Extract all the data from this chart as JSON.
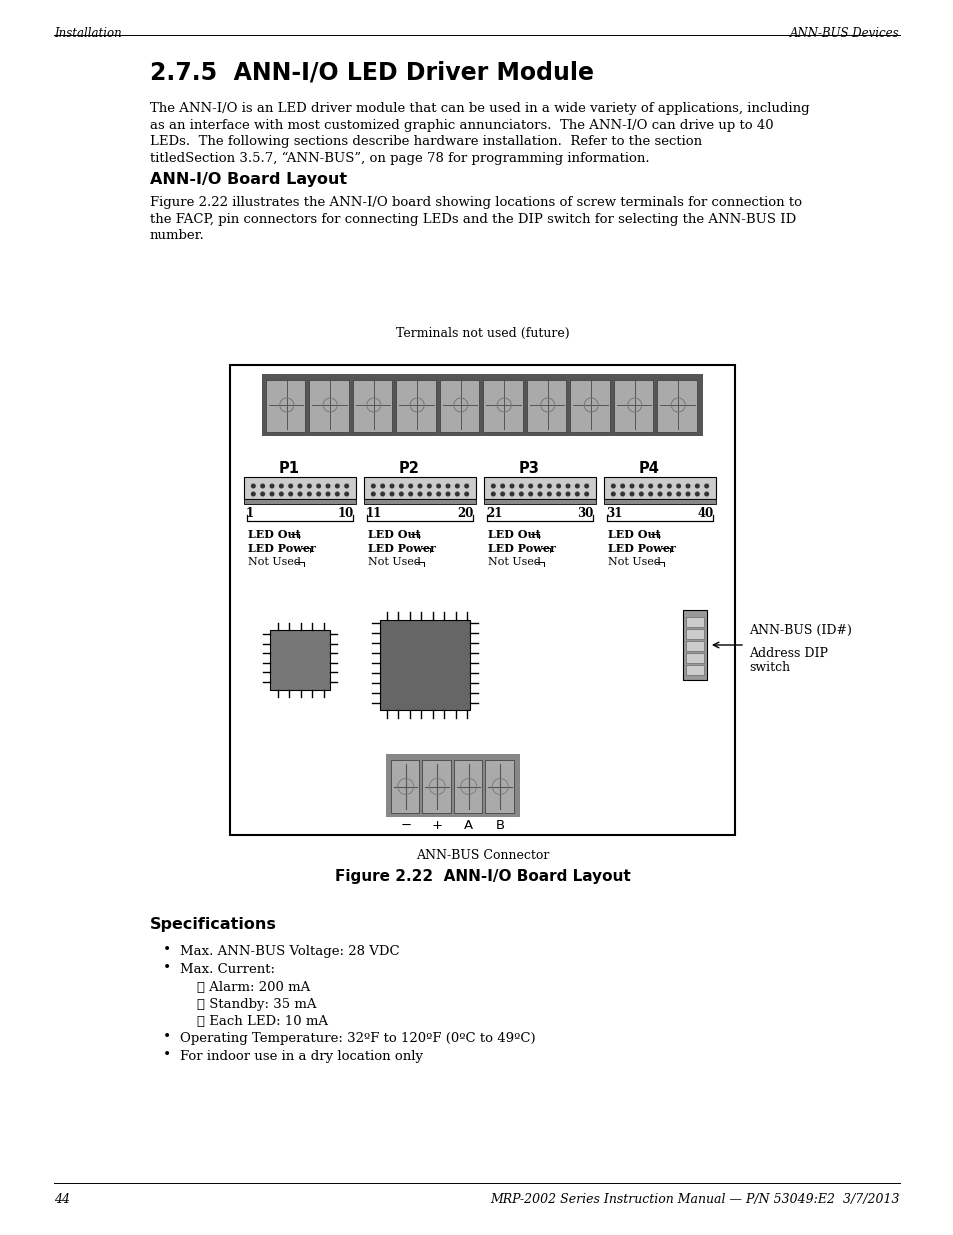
{
  "page_number": "44",
  "footer_text": "MRP-2002 Series Instruction Manual — P/N 53049:E2  3/7/2013",
  "header_left": "Installation",
  "header_right": "ANN-BUS Devices",
  "section_title": "2.7.5  ANN-I/O LED Driver Module",
  "body_paragraph": "The ANN-I/O is an LED driver module that can be used in a wide variety of applications, including\nas an interface with most customized graphic annunciators.  The ANN-I/O can drive up to 40\nLEDs.  The following sections describe hardware installation.  Refer to the section\ntitledSection 3.5.7, “ANN-BUS”, on page 78 for programming information.",
  "subsection_title": "ANN-I/O Board Layout",
  "figure_paragraph": "Figure 2.22 illustrates the ANN-I/O board showing locations of screw terminals for connection to\nthe FACP, pin connectors for connecting LEDs and the DIP switch for selecting the ANN-BUS ID\nnumber.",
  "fig_label_top": "Terminals not used (future)",
  "fig_label_bottom": "ANN-BUS Connector",
  "fig_caption": "Figure 2.22  ANN-I/O Board Layout",
  "dip_label_1": "ANN-BUS (ID#)",
  "dip_label_2": "Address DIP",
  "dip_label_3": "switch",
  "specs_title": "Specifications",
  "specs_items": [
    {
      "type": "bullet",
      "text": "Max. ANN-BUS Voltage: 28 VDC"
    },
    {
      "type": "bullet",
      "text": "Max. Current:"
    },
    {
      "type": "check",
      "text": "Alarm: 200 mA"
    },
    {
      "type": "check",
      "text": "Standby: 35 mA"
    },
    {
      "type": "check",
      "text": "Each LED: 10 mA"
    },
    {
      "type": "bullet",
      "text": "Operating Temperature: 32ºF to 120ºF (0ºC to 49ºC)"
    },
    {
      "type": "bullet",
      "text": "For indoor use in a dry location only"
    }
  ],
  "bg_color": "#ffffff"
}
